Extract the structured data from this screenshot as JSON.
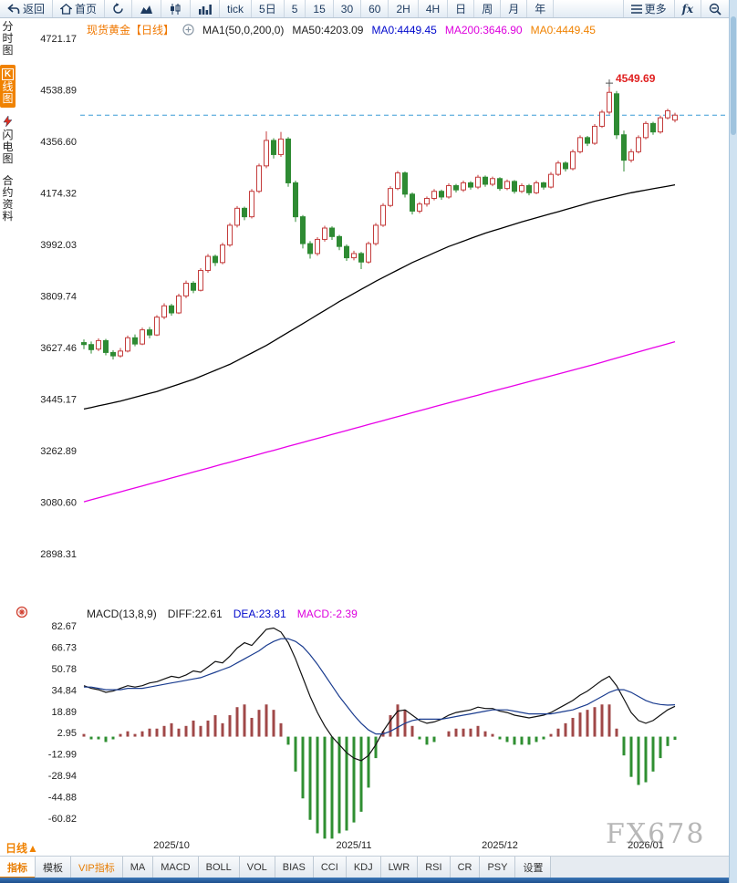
{
  "toolbar": {
    "items": [
      {
        "name": "back-button",
        "icon": "back-icon",
        "label": "返回"
      },
      {
        "name": "home-button",
        "icon": "home-icon",
        "label": "首页"
      },
      {
        "name": "refresh-button",
        "icon": "refresh-icon"
      },
      {
        "name": "area-chart-button",
        "icon": "area-chart-icon"
      },
      {
        "name": "candle-chart-button",
        "icon": "candle-chart-icon"
      },
      {
        "name": "bar-chart-button",
        "icon": "bar-chart-icon"
      },
      {
        "name": "interval-tick-button",
        "label": "tick"
      },
      {
        "name": "interval-5day-button",
        "label": "5日"
      },
      {
        "name": "interval-5-button",
        "label": "5"
      },
      {
        "name": "interval-15-button",
        "label": "15"
      },
      {
        "name": "interval-30-button",
        "label": "30"
      },
      {
        "name": "interval-60-button",
        "label": "60"
      },
      {
        "name": "interval-2h-button",
        "label": "2H"
      },
      {
        "name": "interval-4h-button",
        "label": "4H"
      },
      {
        "name": "interval-day-button",
        "label": "日"
      },
      {
        "name": "interval-week-button",
        "label": "周"
      },
      {
        "name": "interval-month-button",
        "label": "月"
      },
      {
        "name": "interval-year-button",
        "label": "年"
      },
      {
        "name": "more-button",
        "icon": "menu-icon",
        "label": "更多",
        "push": true
      },
      {
        "name": "fx-button",
        "label": "fx",
        "style": "italic"
      },
      {
        "name": "zoom-out-button",
        "icon": "zoom-out-icon"
      }
    ]
  },
  "sidebar": {
    "items": [
      {
        "name": "time-chart",
        "label": "分时图",
        "active": false
      },
      {
        "name": "kline-chart",
        "label": "K线图",
        "active": true
      },
      {
        "name": "lightning-chart",
        "label": "闪电图",
        "active": false,
        "icon": "lightning-icon"
      },
      {
        "name": "contract-info",
        "label": "合约资料",
        "active": false
      }
    ]
  },
  "legend": {
    "symbol": "现货黄金【日线】",
    "ma_settings": "MA1(50,0,200,0)",
    "ma50": "MA50:4203.09",
    "ma0_blue": "MA0:4449.45",
    "ma200": "MA200:3646.90",
    "ma0_orange": "MA0:4449.45"
  },
  "macd_legend": {
    "title": "MACD(13,8,9)",
    "diff": "DIFF:22.61",
    "dea": "DEA:23.81",
    "macd": "MACD:-2.39"
  },
  "period_label": "日线",
  "period_arrow": "▲",
  "watermark": "FX678",
  "bottom_tabs": [
    {
      "label": "指标",
      "active": true
    },
    {
      "label": "模板"
    },
    {
      "label": "VIP指标",
      "vip": true
    },
    {
      "label": "MA"
    },
    {
      "label": "MACD"
    },
    {
      "label": "BOLL"
    },
    {
      "label": "VOL"
    },
    {
      "label": "BIAS"
    },
    {
      "label": "CCI"
    },
    {
      "label": "KDJ"
    },
    {
      "label": "LWR"
    },
    {
      "label": "RSI"
    },
    {
      "label": "CR"
    },
    {
      "label": "PSY"
    },
    {
      "label": "设置"
    }
  ],
  "colors": {
    "up": "#c43c3c",
    "down": "#2e8b33",
    "ma50": "#000000",
    "ma200": "#e800e8",
    "dashed_price": "#3a9bd5",
    "accent_orange": "#f08200",
    "hist_pos": "#a04848",
    "hist_neg": "#2f8f32",
    "diff_line": "#111111",
    "dea_line": "#1a3c8f",
    "annotation_red": "#e02020"
  },
  "chart_data": {
    "type": "candlestick_with_macd",
    "symbol": "现货黄金",
    "period": "日线",
    "current_price": 4449.45,
    "high_annotation": {
      "value": 4549.69,
      "index": 72
    },
    "price_axis": [
      4721.17,
      4538.89,
      4356.6,
      4174.32,
      3992.03,
      3809.74,
      3627.46,
      3445.17,
      3262.89,
      3080.6,
      2898.31
    ],
    "macd_axis": [
      82.67,
      66.73,
      50.78,
      34.84,
      18.89,
      2.95,
      -12.99,
      -28.94,
      -44.88,
      -60.82
    ],
    "x_labels": [
      {
        "label": "2025/10",
        "index": 12
      },
      {
        "label": "2025/11",
        "index": 37
      },
      {
        "label": "2025/12",
        "index": 57
      },
      {
        "label": "2026/01",
        "index": 77
      }
    ],
    "candles": [
      [
        3645,
        3656,
        3622,
        3638
      ],
      [
        3638,
        3649,
        3606,
        3620
      ],
      [
        3622,
        3660,
        3615,
        3652
      ],
      [
        3652,
        3658,
        3600,
        3610
      ],
      [
        3610,
        3618,
        3585,
        3598
      ],
      [
        3598,
        3626,
        3592,
        3615
      ],
      [
        3615,
        3670,
        3610,
        3662
      ],
      [
        3662,
        3674,
        3632,
        3640
      ],
      [
        3640,
        3698,
        3636,
        3690
      ],
      [
        3690,
        3700,
        3660,
        3672
      ],
      [
        3672,
        3742,
        3668,
        3735
      ],
      [
        3735,
        3784,
        3728,
        3775
      ],
      [
        3775,
        3782,
        3740,
        3750
      ],
      [
        3750,
        3818,
        3746,
        3810
      ],
      [
        3810,
        3864,
        3802,
        3855
      ],
      [
        3855,
        3862,
        3820,
        3830
      ],
      [
        3830,
        3908,
        3826,
        3900
      ],
      [
        3900,
        3958,
        3892,
        3950
      ],
      [
        3950,
        3956,
        3916,
        3928
      ],
      [
        3928,
        3998,
        3922,
        3990
      ],
      [
        3990,
        4068,
        3984,
        4060
      ],
      [
        4060,
        4128,
        4052,
        4120
      ],
      [
        4120,
        4126,
        4078,
        4090
      ],
      [
        4090,
        4188,
        4084,
        4180
      ],
      [
        4180,
        4278,
        4174,
        4270
      ],
      [
        4270,
        4392,
        4262,
        4360
      ],
      [
        4360,
        4368,
        4296,
        4310
      ],
      [
        4310,
        4390,
        4302,
        4365
      ],
      [
        4365,
        4372,
        4196,
        4210
      ],
      [
        4210,
        4218,
        4072,
        4090
      ],
      [
        4090,
        4096,
        3978,
        3995
      ],
      [
        3995,
        4004,
        3942,
        3960
      ],
      [
        3960,
        4018,
        3952,
        4010
      ],
      [
        4010,
        4058,
        4002,
        4050
      ],
      [
        4050,
        4056,
        4008,
        4020
      ],
      [
        4020,
        4026,
        3972,
        3985
      ],
      [
        3985,
        3992,
        3934,
        3945
      ],
      [
        3945,
        3970,
        3936,
        3960
      ],
      [
        3960,
        3966,
        3905,
        3930
      ],
      [
        3930,
        4002,
        3924,
        3995
      ],
      [
        3995,
        4068,
        3988,
        4060
      ],
      [
        4060,
        4138,
        4054,
        4130
      ],
      [
        4130,
        4198,
        4124,
        4190
      ],
      [
        4190,
        4252,
        4184,
        4245
      ],
      [
        4245,
        4250,
        4158,
        4170
      ],
      [
        4170,
        4176,
        4098,
        4110
      ],
      [
        4110,
        4142,
        4102,
        4135
      ],
      [
        4135,
        4162,
        4126,
        4155
      ],
      [
        4155,
        4188,
        4148,
        4180
      ],
      [
        4180,
        4186,
        4150,
        4160
      ],
      [
        4160,
        4208,
        4154,
        4200
      ],
      [
        4200,
        4206,
        4176,
        4185
      ],
      [
        4185,
        4218,
        4178,
        4210
      ],
      [
        4210,
        4216,
        4186,
        4195
      ],
      [
        4195,
        4238,
        4188,
        4230
      ],
      [
        4230,
        4236,
        4196,
        4205
      ],
      [
        4205,
        4232,
        4198,
        4225
      ],
      [
        4225,
        4230,
        4182,
        4190
      ],
      [
        4190,
        4222,
        4184,
        4215
      ],
      [
        4215,
        4220,
        4172,
        4180
      ],
      [
        4180,
        4208,
        4174,
        4200
      ],
      [
        4200,
        4206,
        4166,
        4175
      ],
      [
        4175,
        4218,
        4170,
        4210
      ],
      [
        4210,
        4214,
        4186,
        4195
      ],
      [
        4195,
        4248,
        4190,
        4240
      ],
      [
        4240,
        4288,
        4234,
        4280
      ],
      [
        4280,
        4286,
        4250,
        4260
      ],
      [
        4260,
        4328,
        4254,
        4320
      ],
      [
        4320,
        4378,
        4314,
        4370
      ],
      [
        4370,
        4376,
        4340,
        4350
      ],
      [
        4350,
        4418,
        4344,
        4410
      ],
      [
        4410,
        4468,
        4404,
        4460
      ],
      [
        4460,
        4549.69,
        4452,
        4530
      ],
      [
        4525,
        4535,
        4365,
        4380
      ],
      [
        4380,
        4395,
        4250,
        4290
      ],
      [
        4290,
        4330,
        4282,
        4320
      ],
      [
        4320,
        4378,
        4314,
        4370
      ],
      [
        4370,
        4428,
        4364,
        4420
      ],
      [
        4420,
        4426,
        4380,
        4390
      ],
      [
        4390,
        4448,
        4384,
        4440
      ],
      [
        4440,
        4472,
        4434,
        4465
      ],
      [
        4432,
        4458,
        4424,
        4449.45
      ]
    ],
    "ma50_points": [
      [
        0,
        3410
      ],
      [
        5,
        3438
      ],
      [
        10,
        3472
      ],
      [
        15,
        3515
      ],
      [
        20,
        3568
      ],
      [
        25,
        3635
      ],
      [
        30,
        3712
      ],
      [
        35,
        3790
      ],
      [
        40,
        3862
      ],
      [
        45,
        3928
      ],
      [
        50,
        3985
      ],
      [
        55,
        4032
      ],
      [
        60,
        4072
      ],
      [
        65,
        4108
      ],
      [
        70,
        4145
      ],
      [
        75,
        4175
      ],
      [
        81,
        4203
      ]
    ],
    "ma200_points": [
      [
        0,
        3082
      ],
      [
        10,
        3152
      ],
      [
        20,
        3222
      ],
      [
        30,
        3292
      ],
      [
        40,
        3362
      ],
      [
        50,
        3432
      ],
      [
        60,
        3500
      ],
      [
        70,
        3568
      ],
      [
        75,
        3605
      ],
      [
        81,
        3648
      ]
    ],
    "macd": {
      "diff": [
        38,
        36,
        35,
        33,
        34,
        36,
        38,
        37,
        38,
        40,
        41,
        43,
        45,
        44,
        46,
        49,
        48,
        52,
        56,
        55,
        60,
        66,
        70,
        68,
        74,
        80,
        81,
        78,
        70,
        58,
        44,
        30,
        18,
        8,
        0,
        -6,
        -12,
        -16,
        -18,
        -14,
        -6,
        4,
        12,
        19,
        20,
        16,
        12,
        10,
        11,
        13,
        16,
        18,
        19,
        20,
        22,
        21,
        21,
        19,
        18,
        16,
        15,
        14,
        15,
        16,
        18,
        21,
        24,
        27,
        31,
        34,
        38,
        42,
        45,
        38,
        28,
        18,
        12,
        10,
        12,
        16,
        20,
        22.61
      ],
      "dea": [
        37,
        37,
        36,
        35,
        35,
        35,
        36,
        36,
        36,
        37,
        38,
        39,
        40,
        41,
        42,
        43,
        44,
        46,
        48,
        50,
        52,
        55,
        58,
        61,
        64,
        68,
        71,
        73,
        73,
        71,
        67,
        61,
        54,
        46,
        38,
        30,
        23,
        16,
        10,
        5,
        2,
        2,
        4,
        7,
        10,
        12,
        13,
        13,
        13,
        13,
        14,
        15,
        16,
        17,
        18,
        19,
        20,
        20,
        20,
        19,
        18,
        17,
        17,
        17,
        17,
        18,
        19,
        20,
        22,
        24,
        27,
        30,
        33,
        35,
        35,
        33,
        30,
        27,
        25,
        24,
        23.5,
        23.81
      ],
      "hist": [
        2,
        -2,
        -2,
        -4,
        -2,
        2,
        4,
        2,
        4,
        6,
        6,
        8,
        10,
        6,
        8,
        12,
        8,
        12,
        16,
        10,
        16,
        22,
        24,
        14,
        20,
        24,
        20,
        10,
        -6,
        -26,
        -46,
        -62,
        -72,
        -76,
        -76,
        -72,
        -70,
        -64,
        -56,
        -38,
        -16,
        4,
        16,
        24,
        20,
        8,
        -2,
        -6,
        -4,
        0,
        4,
        6,
        6,
        6,
        8,
        4,
        2,
        -2,
        -4,
        -6,
        -6,
        -6,
        -4,
        -2,
        2,
        6,
        10,
        14,
        18,
        20,
        22,
        24,
        24,
        6,
        -14,
        -30,
        -36,
        -34,
        -26,
        -16,
        -7,
        -2.39
      ]
    }
  }
}
